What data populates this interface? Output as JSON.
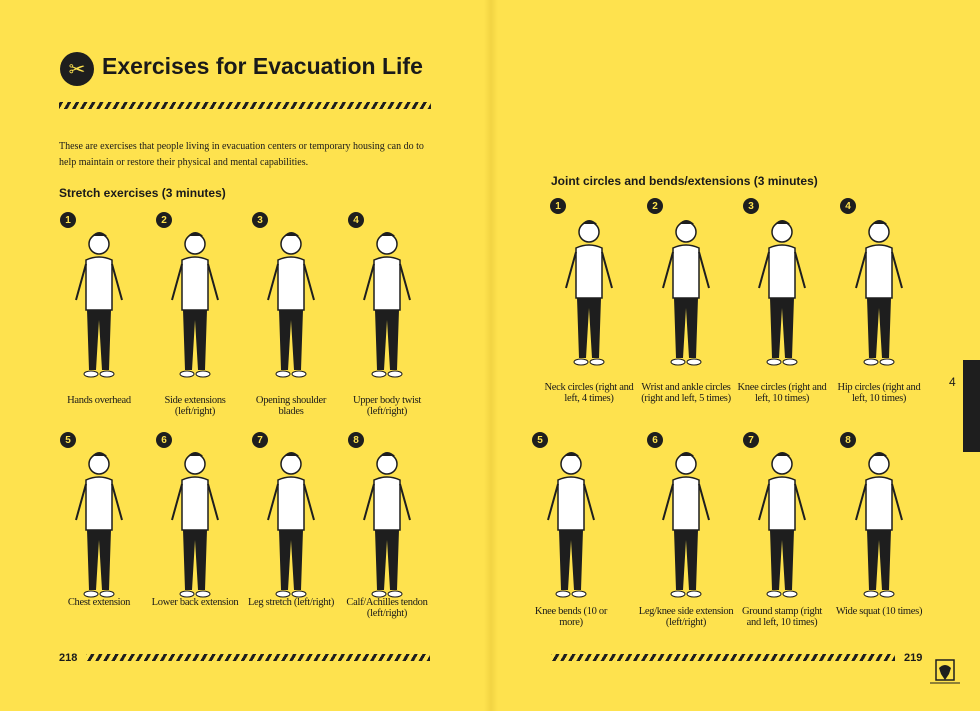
{
  "title": "Exercises for Evacuation Life",
  "title_icon": "scissors-icon",
  "intro": "These are exercises that people living in evacuation centers or temporary housing can do to help maintain or restore their physical and mental capabilities.",
  "left": {
    "section": "Stretch exercises (3 minutes)",
    "row1": [
      {
        "n": "1",
        "label": "Hands overhead"
      },
      {
        "n": "2",
        "label": "Side extensions (left/right)"
      },
      {
        "n": "3",
        "label": "Opening shoulder blades"
      },
      {
        "n": "4",
        "label": "Upper body twist (left/right)"
      }
    ],
    "row2": [
      {
        "n": "5",
        "label": "Chest extension"
      },
      {
        "n": "6",
        "label": "Lower back extension"
      },
      {
        "n": "7",
        "label": "Leg stretch (left/right)"
      },
      {
        "n": "8",
        "label": "Calf/Achilles tendon (left/right)"
      }
    ],
    "page": "218"
  },
  "right": {
    "section": "Joint circles and bends/extensions (3 minutes)",
    "row1": [
      {
        "n": "1",
        "label": "Neck circles (right and left, 4 times)"
      },
      {
        "n": "2",
        "label": "Wrist and ankle circles (right and left, 5 times)"
      },
      {
        "n": "3",
        "label": "Knee circles (right and left, 10 times)"
      },
      {
        "n": "4",
        "label": "Hip circles (right and left, 10 times)"
      }
    ],
    "row2": [
      {
        "n": "5",
        "label": "Knee bends (10 or more)"
      },
      {
        "n": "6",
        "label": "Leg/knee side extension (left/right)"
      },
      {
        "n": "7",
        "label": "Ground stamp (right and left, 10 times)"
      },
      {
        "n": "8",
        "label": "Wide squat (10 times)"
      }
    ],
    "page": "219"
  },
  "chapter_tab": "4",
  "colors": {
    "background": "#fee24e",
    "ink": "#1e1e1e"
  }
}
